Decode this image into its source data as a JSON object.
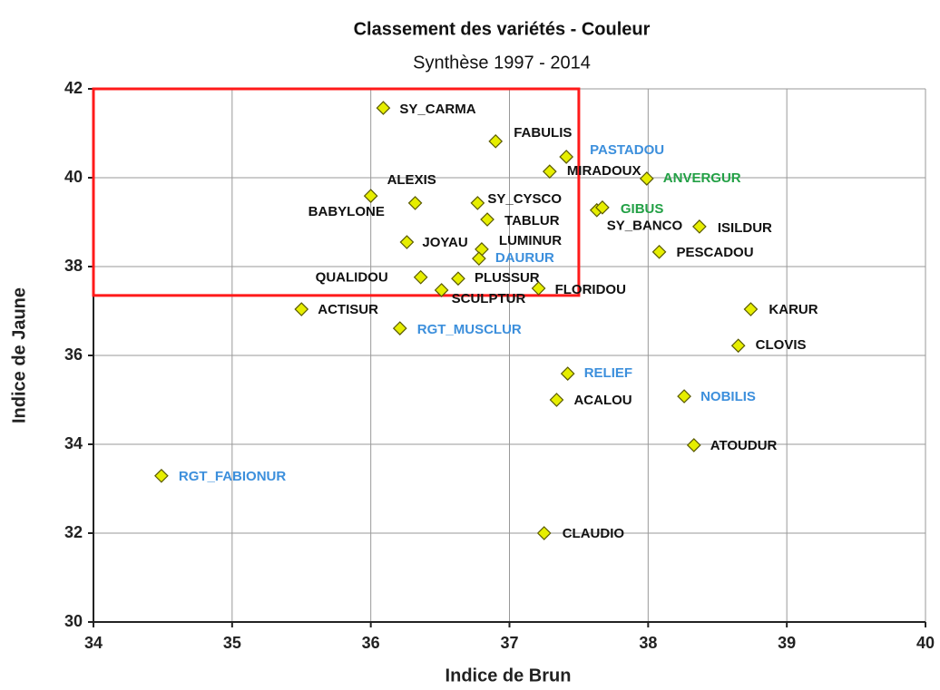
{
  "chart_data": {
    "type": "scatter",
    "title": "Classement des variétés - Couleur",
    "subtitle": "Synthèse 1997 - 2014",
    "xlabel": "Indice de Brun",
    "ylabel": "Indice de Jaune",
    "xlim": [
      34,
      40
    ],
    "ylim": [
      30,
      42
    ],
    "xticks": [
      34,
      35,
      36,
      37,
      38,
      39,
      40
    ],
    "yticks": [
      30,
      32,
      34,
      36,
      38,
      40,
      42
    ],
    "grid": true,
    "marker_color": "#e6ee00",
    "highlight": {
      "xlim": [
        34,
        37.5
      ],
      "ylim": [
        37.35,
        42
      ],
      "color": "#ff1a1a"
    },
    "labels": [
      "SY_CARMA",
      "FABULIS",
      "PASTADOU",
      "MIRADOUX",
      "ANVERGUR",
      "ALEXIS",
      "BABYLONE",
      "SY_CYSCO",
      "SY_BANCO",
      "GIBUS",
      "TABLUR",
      "ISILDUR",
      "JOYAU",
      "LUMINUR",
      "DAURUR",
      "PESCADOU",
      "QUALIDOU",
      "PLUSSUR",
      "SCULPTUR",
      "FLORIDOU",
      "ACTISUR",
      "KARUR",
      "RGT_MUSCLUR",
      "CLOVIS",
      "RELIEF",
      "ACALOU",
      "NOBILIS",
      "ATOUDUR",
      "RGT_FABIONUR",
      "CLAUDIO"
    ],
    "x": [
      36.09,
      36.9,
      37.41,
      37.29,
      37.99,
      36.32,
      36.0,
      36.77,
      37.63,
      37.67,
      36.84,
      38.37,
      36.26,
      36.8,
      36.78,
      38.08,
      36.36,
      36.63,
      36.51,
      37.21,
      35.5,
      38.74,
      36.21,
      38.65,
      37.42,
      37.34,
      38.26,
      38.33,
      34.49,
      37.25
    ],
    "y": [
      41.57,
      40.82,
      40.47,
      40.14,
      39.98,
      39.43,
      39.59,
      39.43,
      39.27,
      39.33,
      39.06,
      38.9,
      38.55,
      38.39,
      38.18,
      38.33,
      37.76,
      37.73,
      37.47,
      37.51,
      37.04,
      37.04,
      36.61,
      36.22,
      35.59,
      35.0,
      35.08,
      33.98,
      33.29,
      32.0
    ],
    "label_colors": [
      "#111111",
      "#111111",
      "#3c8fdc",
      "#111111",
      "#22a045",
      "#111111",
      "#111111",
      "#111111",
      "#111111",
      "#22a045",
      "#111111",
      "#111111",
      "#111111",
      "#111111",
      "#3c8fdc",
      "#111111",
      "#111111",
      "#111111",
      "#111111",
      "#111111",
      "#111111",
      "#111111",
      "#3c8fdc",
      "#111111",
      "#3c8fdc",
      "#111111",
      "#3c8fdc",
      "#111111",
      "#3c8fdc",
      "#111111"
    ]
  }
}
